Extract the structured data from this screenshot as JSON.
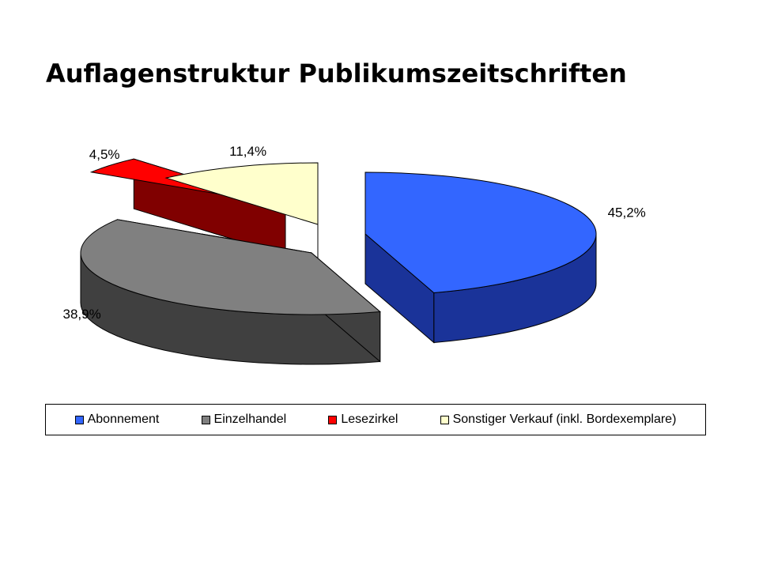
{
  "chart_data": {
    "type": "pie",
    "title": "Auflagenstruktur Publikumszeitschriften",
    "slices": [
      {
        "name": "Abonnement",
        "value": 45.2,
        "label": "45,2%",
        "color": "#3366ff",
        "side_color": "#1a3399"
      },
      {
        "name": "Einzelhandel",
        "value": 38.9,
        "label": "38,9%",
        "color": "#808080",
        "side_color": "#404040"
      },
      {
        "name": "Lesezirkel",
        "value": 4.5,
        "label": "4,5%",
        "color": "#ff0000",
        "side_color": "#800000"
      },
      {
        "name": "Sonstiger Verkauf (inkl. Bordexemplare)",
        "value": 11.4,
        "label": "11,4%",
        "color": "#ffffcc",
        "side_color": "#808066"
      }
    ],
    "legend": {
      "position": "bottom",
      "items": [
        {
          "label": "Abonnement",
          "color": "#3366ff"
        },
        {
          "label": "Einzelhandel",
          "color": "#808080"
        },
        {
          "label": "Lesezirkel",
          "color": "#ff0000"
        },
        {
          "label": "Sonstiger Verkauf (inkl. Bordexemplare)",
          "color": "#ffffcc"
        }
      ]
    }
  }
}
